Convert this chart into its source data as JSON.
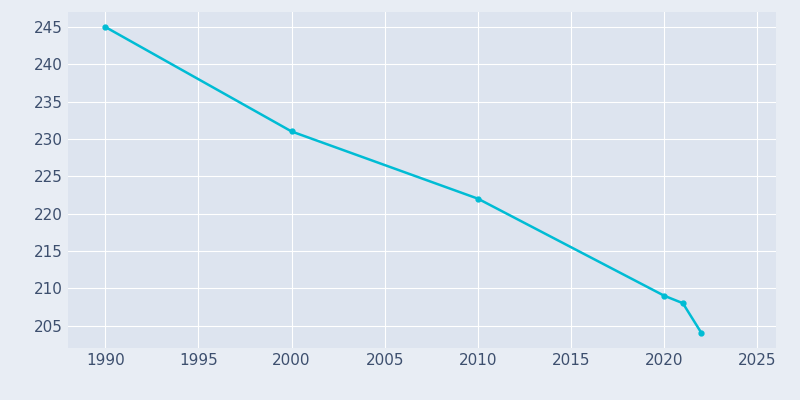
{
  "x": [
    1990,
    2000,
    2010,
    2020,
    2021,
    2022
  ],
  "y": [
    245,
    231,
    222,
    209,
    208,
    204
  ],
  "line_color": "#00bcd4",
  "marker": "o",
  "marker_size": 3.5,
  "line_width": 1.8,
  "background_color": "#e8edf4",
  "plot_bg_color": "#dde4ef",
  "grid_color": "#ffffff",
  "tick_color": "#3d4f6e",
  "xlim": [
    1988,
    2026
  ],
  "ylim": [
    202,
    247
  ],
  "xticks": [
    1990,
    1995,
    2000,
    2005,
    2010,
    2015,
    2020,
    2025
  ],
  "yticks": [
    205,
    210,
    215,
    220,
    225,
    230,
    235,
    240,
    245
  ]
}
